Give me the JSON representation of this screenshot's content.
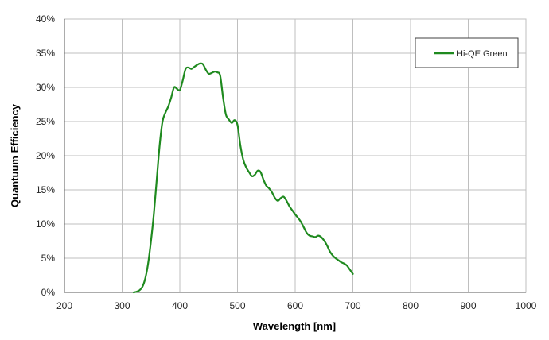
{
  "chart_data": {
    "type": "line",
    "title": "",
    "xlabel": "Wavelength [nm]",
    "ylabel": "Quantuum Efficiency",
    "xlim": [
      200,
      1000
    ],
    "ylim": [
      0,
      40
    ],
    "x_ticks": [
      200,
      300,
      400,
      500,
      600,
      700,
      800,
      900,
      1000
    ],
    "x_tick_labels": [
      "200",
      "300",
      "400",
      "500",
      "600",
      "700",
      "800",
      "900",
      "1000"
    ],
    "y_ticks": [
      0,
      5,
      10,
      15,
      20,
      25,
      30,
      35,
      40
    ],
    "y_tick_labels": [
      "0%",
      "5%",
      "10%",
      "15%",
      "20%",
      "25%",
      "30%",
      "35%",
      "40%"
    ],
    "grid": true,
    "legend_position": "top-right",
    "series": [
      {
        "name": "Hi-QE Green",
        "color": "#1f8a1f",
        "x": [
          320,
          325,
          330,
          335,
          340,
          345,
          350,
          355,
          360,
          365,
          370,
          375,
          380,
          385,
          390,
          395,
          400,
          405,
          410,
          415,
          420,
          425,
          430,
          435,
          440,
          445,
          450,
          455,
          460,
          465,
          470,
          475,
          480,
          485,
          490,
          495,
          500,
          505,
          510,
          515,
          520,
          525,
          530,
          535,
          540,
          545,
          550,
          555,
          560,
          565,
          570,
          575,
          580,
          585,
          590,
          595,
          600,
          605,
          610,
          615,
          620,
          625,
          630,
          635,
          640,
          645,
          650,
          655,
          660,
          665,
          670,
          675,
          680,
          685,
          690,
          695,
          700
        ],
        "y": [
          0.0,
          0.1,
          0.3,
          0.8,
          2.0,
          4.2,
          7.5,
          11.5,
          16.5,
          21.5,
          25.0,
          26.3,
          27.2,
          28.5,
          30.0,
          29.8,
          29.6,
          31.0,
          32.7,
          32.9,
          32.7,
          33.0,
          33.3,
          33.5,
          33.4,
          32.6,
          32.0,
          32.1,
          32.3,
          32.2,
          31.7,
          28.5,
          26.0,
          25.3,
          24.8,
          25.2,
          24.5,
          21.5,
          19.4,
          18.3,
          17.6,
          17.0,
          17.2,
          17.8,
          17.6,
          16.5,
          15.6,
          15.2,
          14.6,
          13.8,
          13.4,
          13.8,
          14.0,
          13.4,
          12.6,
          12.0,
          11.4,
          10.9,
          10.3,
          9.5,
          8.7,
          8.3,
          8.2,
          8.1,
          8.3,
          8.1,
          7.6,
          6.9,
          6.0,
          5.4,
          5.0,
          4.7,
          4.4,
          4.2,
          3.9,
          3.3,
          2.7
        ]
      }
    ]
  }
}
